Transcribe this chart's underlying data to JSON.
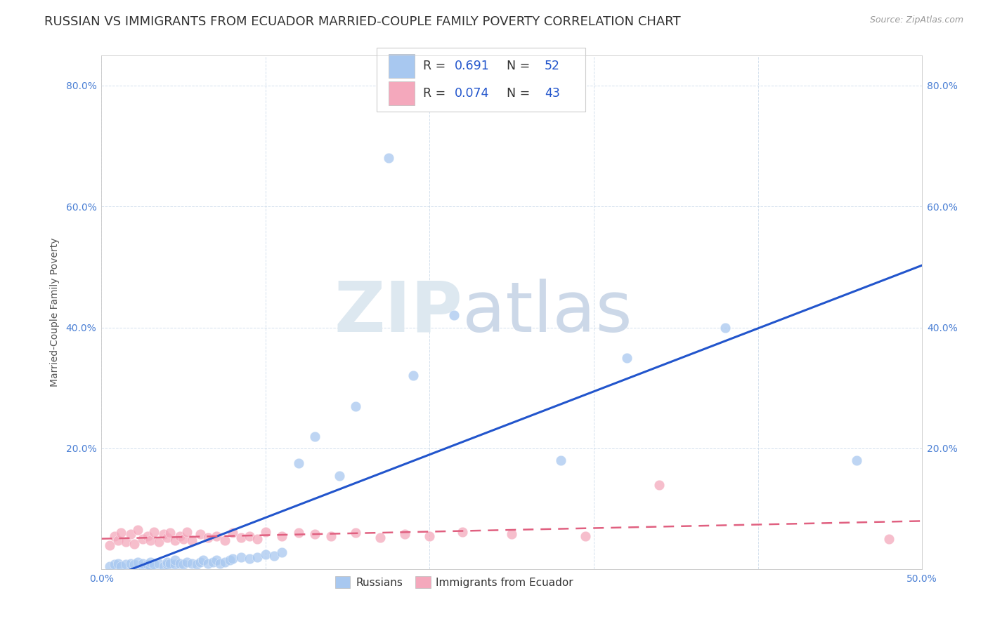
{
  "title": "RUSSIAN VS IMMIGRANTS FROM ECUADOR MARRIED-COUPLE FAMILY POVERTY CORRELATION CHART",
  "source": "Source: ZipAtlas.com",
  "ylabel": "Married-Couple Family Poverty",
  "xlim": [
    0.0,
    0.5
  ],
  "ylim": [
    0.0,
    0.85
  ],
  "xticks": [
    0.0,
    0.1,
    0.2,
    0.3,
    0.4,
    0.5
  ],
  "xticklabels": [
    "0.0%",
    "",
    "",
    "",
    "",
    "50.0%"
  ],
  "yticks": [
    0.0,
    0.2,
    0.4,
    0.6,
    0.8
  ],
  "yticklabels": [
    "",
    "20.0%",
    "40.0%",
    "60.0%",
    "80.0%"
  ],
  "russian_color": "#a8c8f0",
  "ecuador_color": "#f4a8bc",
  "russian_line_color": "#2255cc",
  "ecuador_line_color": "#e06080",
  "russian_R": 0.691,
  "russian_N": 52,
  "ecuador_R": 0.074,
  "ecuador_N": 43,
  "legend_value_color": "#2255cc",
  "title_color": "#333333",
  "title_fontsize": 13,
  "axis_label_fontsize": 10,
  "tick_fontsize": 10,
  "tick_color": "#4a7fd4",
  "russian_x": [
    0.005,
    0.008,
    0.01,
    0.012,
    0.015,
    0.018,
    0.02,
    0.022,
    0.025,
    0.025,
    0.028,
    0.03,
    0.03,
    0.032,
    0.035,
    0.038,
    0.04,
    0.04,
    0.042,
    0.045,
    0.045,
    0.048,
    0.05,
    0.052,
    0.055,
    0.058,
    0.06,
    0.062,
    0.065,
    0.068,
    0.07,
    0.072,
    0.075,
    0.078,
    0.08,
    0.085,
    0.09,
    0.095,
    0.1,
    0.105,
    0.11,
    0.12,
    0.13,
    0.145,
    0.155,
    0.175,
    0.19,
    0.215,
    0.28,
    0.32,
    0.38,
    0.46
  ],
  "russian_y": [
    0.005,
    0.008,
    0.01,
    0.005,
    0.008,
    0.01,
    0.008,
    0.012,
    0.005,
    0.01,
    0.008,
    0.005,
    0.012,
    0.008,
    0.01,
    0.005,
    0.008,
    0.012,
    0.01,
    0.008,
    0.015,
    0.01,
    0.008,
    0.012,
    0.01,
    0.008,
    0.012,
    0.015,
    0.01,
    0.012,
    0.015,
    0.01,
    0.012,
    0.015,
    0.018,
    0.02,
    0.018,
    0.02,
    0.025,
    0.022,
    0.028,
    0.175,
    0.22,
    0.155,
    0.27,
    0.68,
    0.32,
    0.42,
    0.18,
    0.35,
    0.4,
    0.18
  ],
  "ecuador_x": [
    0.005,
    0.008,
    0.01,
    0.012,
    0.015,
    0.018,
    0.02,
    0.022,
    0.025,
    0.028,
    0.03,
    0.032,
    0.035,
    0.038,
    0.04,
    0.042,
    0.045,
    0.048,
    0.05,
    0.052,
    0.055,
    0.06,
    0.065,
    0.07,
    0.075,
    0.08,
    0.085,
    0.09,
    0.095,
    0.1,
    0.11,
    0.12,
    0.13,
    0.14,
    0.155,
    0.17,
    0.185,
    0.2,
    0.22,
    0.25,
    0.295,
    0.34,
    0.48
  ],
  "ecuador_y": [
    0.04,
    0.055,
    0.048,
    0.06,
    0.045,
    0.058,
    0.042,
    0.065,
    0.05,
    0.055,
    0.048,
    0.062,
    0.045,
    0.058,
    0.052,
    0.06,
    0.048,
    0.055,
    0.05,
    0.062,
    0.048,
    0.058,
    0.052,
    0.055,
    0.048,
    0.06,
    0.052,
    0.055,
    0.05,
    0.062,
    0.055,
    0.06,
    0.058,
    0.055,
    0.06,
    0.052,
    0.058,
    0.055,
    0.062,
    0.058,
    0.055,
    0.14,
    0.05
  ]
}
